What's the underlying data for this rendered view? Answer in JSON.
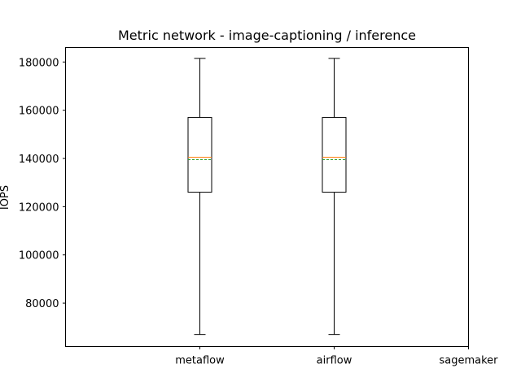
{
  "chart_data": {
    "type": "box",
    "title": "Metric network - image-captioning / inference",
    "xlabel": "",
    "ylabel": "IOPS",
    "categories": [
      "metaflow",
      "airflow",
      "sagemaker"
    ],
    "ylim": [
      62000,
      186000
    ],
    "yticks": [
      80000,
      100000,
      120000,
      140000,
      160000,
      180000
    ],
    "ytick_labels": [
      "80000",
      "100000",
      "120000",
      "140000",
      "160000",
      "180000"
    ],
    "grid": false,
    "boxes": [
      {
        "category": "metaflow",
        "whisker_low": 67000,
        "q1": 126000,
        "median": 140500,
        "mean": 139500,
        "q3": 157000,
        "whisker_high": 181500
      },
      {
        "category": "airflow",
        "whisker_low": 67000,
        "q1": 126000,
        "median": 140500,
        "mean": 139500,
        "q3": 157000,
        "whisker_high": 181500
      },
      {
        "category": "sagemaker",
        "whisker_low": null,
        "q1": null,
        "median": null,
        "mean": null,
        "q3": null,
        "whisker_high": null
      }
    ],
    "colors": {
      "box": "#000000",
      "median": "#ff7f0e",
      "mean": "#2ca02c"
    }
  }
}
